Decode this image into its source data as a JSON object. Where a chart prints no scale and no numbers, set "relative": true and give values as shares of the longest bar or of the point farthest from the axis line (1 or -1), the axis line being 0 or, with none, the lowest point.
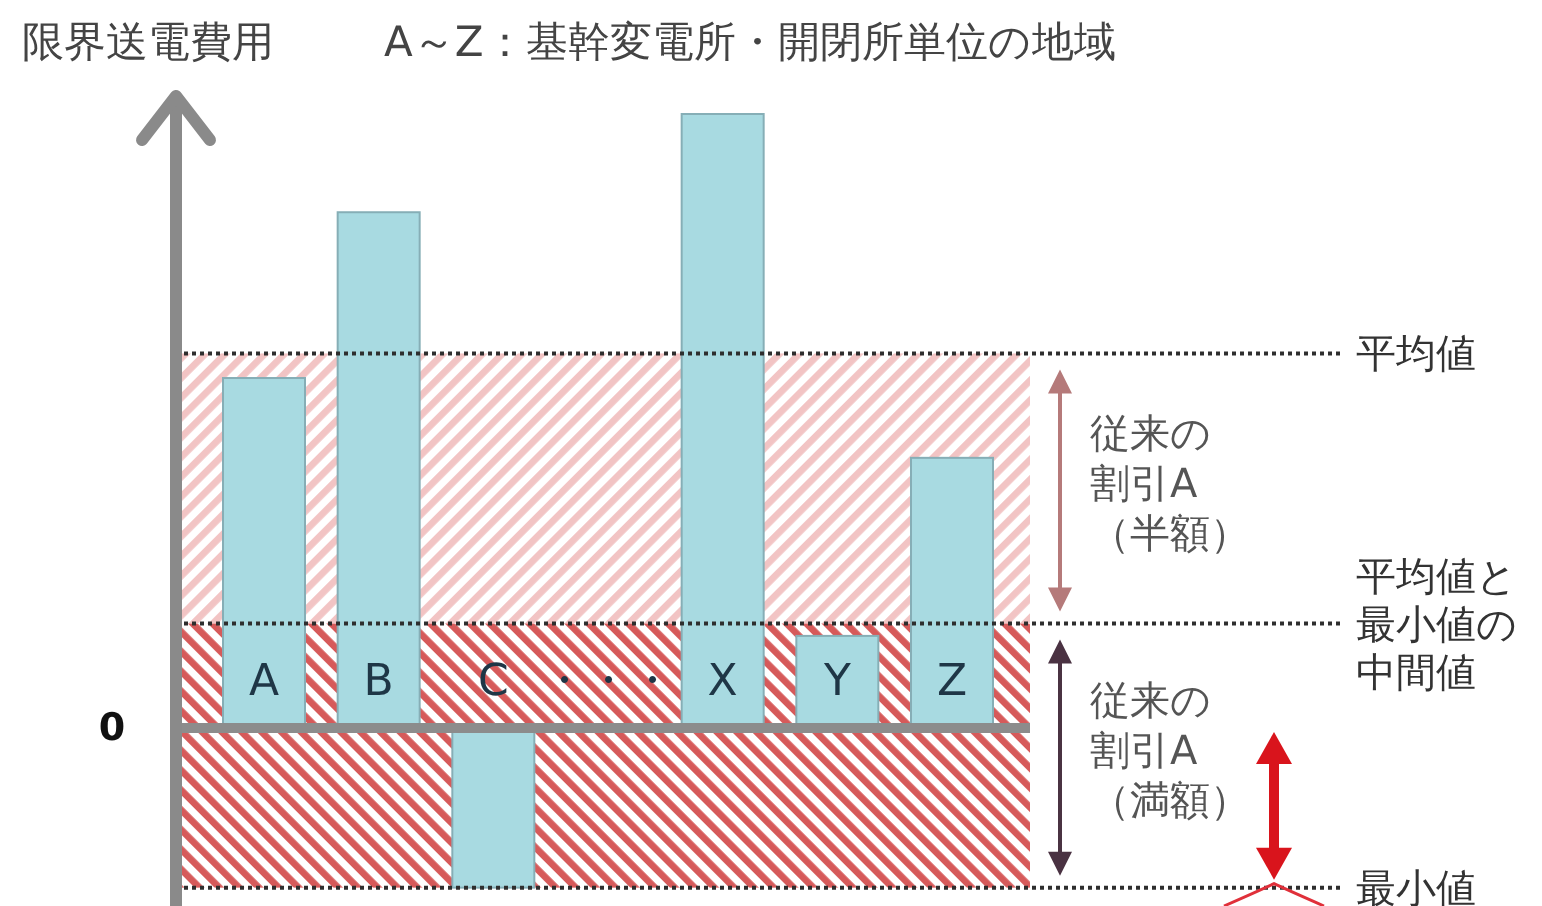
{
  "chart_data": {
    "type": "bar",
    "title": "A～Z：基幹変電所・開閉所単位の地域",
    "ylabel": "限界送電費用",
    "categories": [
      "A",
      "B",
      "C",
      "・・・",
      "X",
      "Y",
      "Z"
    ],
    "values": [
      0.57,
      0.84,
      -0.26,
      null,
      1,
      0.15,
      0.44
    ],
    "color": "#a8dae1",
    "relative": true,
    "ref_lines": [
      {
        "axis": "y",
        "value": 0.61,
        "label": "平均値",
        "line_style": "dotted"
      },
      {
        "axis": "y",
        "value": 0.17,
        "label": "平均値と最小値の中間値",
        "line_style": "dotted"
      },
      {
        "axis": "y",
        "value": -0.26,
        "label": "最小値",
        "line_style": "dotted"
      }
    ],
    "bands": [
      {
        "axis": "y",
        "from": 0.17,
        "to": 0.61,
        "label": "従来の割引A（半額）",
        "color": "#f2c4c4"
      },
      {
        "axis": "y",
        "from": -0.26,
        "to": 0.17,
        "label": "従来の割引A（満額）",
        "color": "#d65a5a"
      }
    ],
    "annotations": [
      "0"
    ]
  }
}
